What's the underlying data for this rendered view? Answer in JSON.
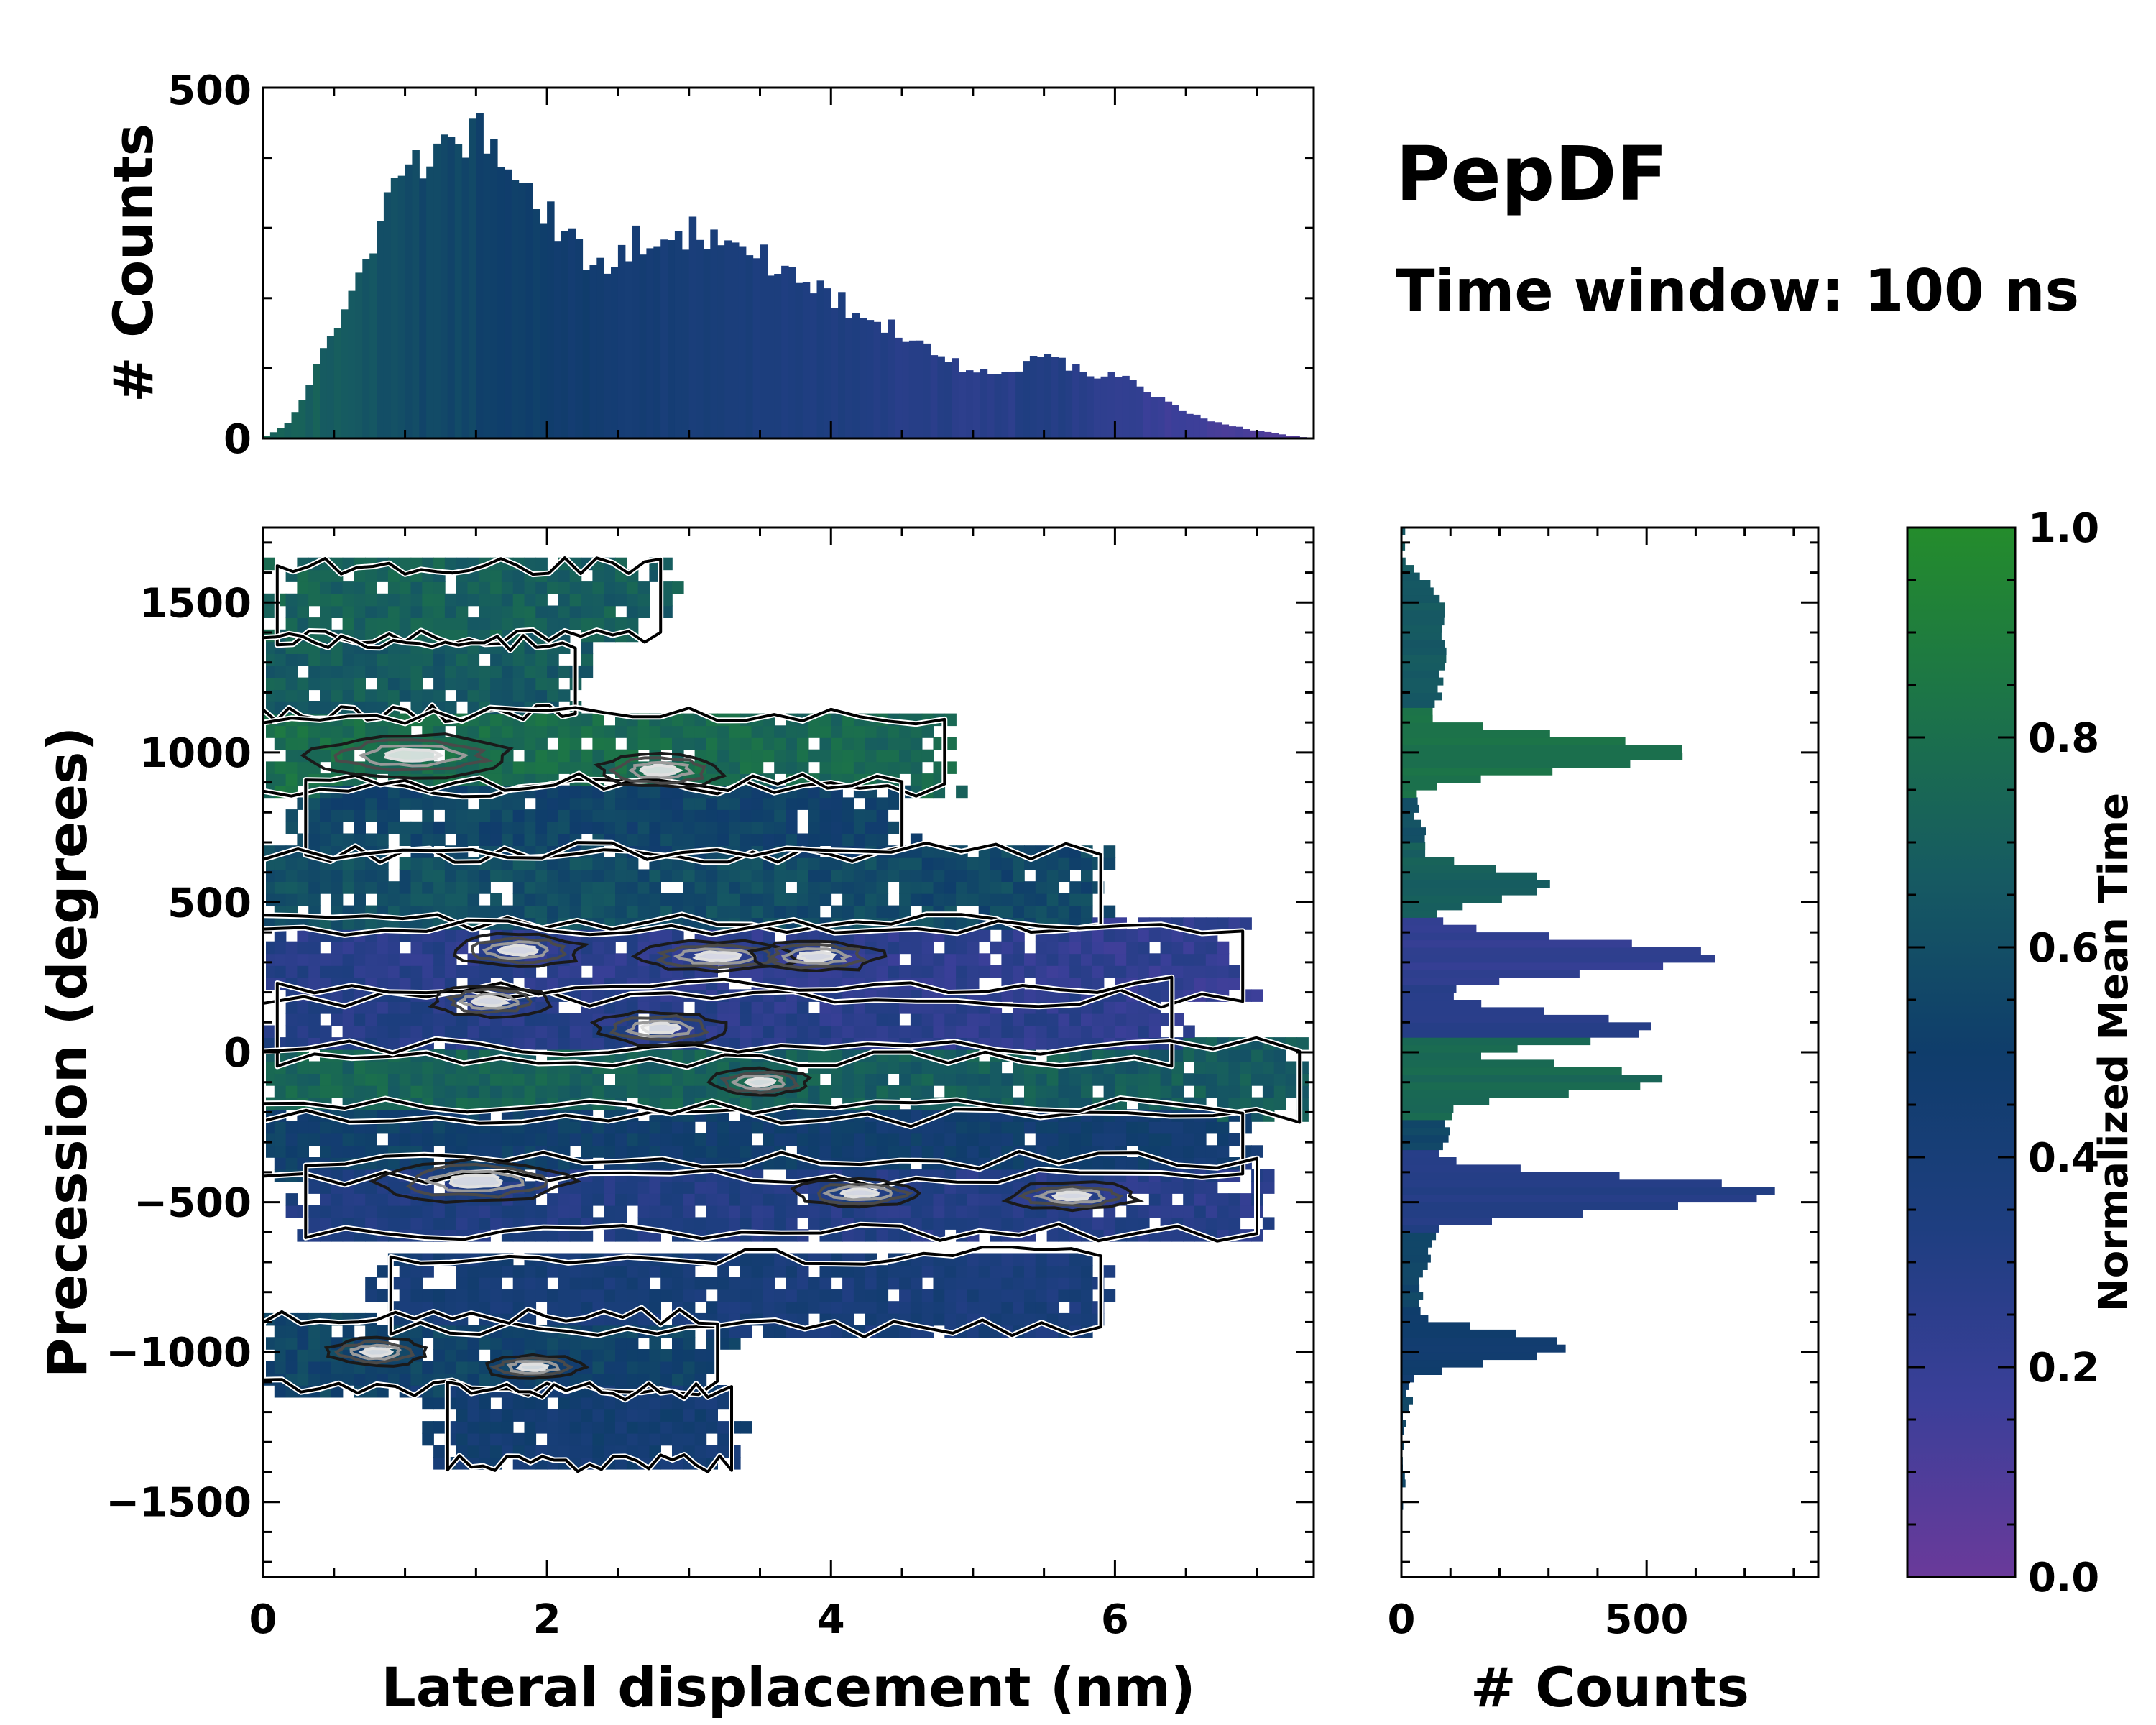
{
  "title": "PepDF",
  "subtitle": "Time window: 100 ns",
  "colors": {
    "colormap": [
      "#6a3a9a",
      "#3b3f99",
      "#1e3e80",
      "#0f3d6b",
      "#165a62",
      "#1c7448",
      "#248c2c"
    ],
    "contour_outer": "#000000",
    "contour_inner_gray": "#5a5a5a",
    "contour_peak_light": "#d8d8d8",
    "frame": "#000000",
    "background": "#ffffff"
  },
  "chart_data": [
    {
      "id": "main",
      "type": "heatmap",
      "xlabel": "Lateral displacement (nm)",
      "ylabel": "Precession (degrees)",
      "xlim": [
        0,
        7.4
      ],
      "ylim": [
        -1750,
        1750
      ],
      "xticks": [
        "0",
        "2",
        "4",
        "6"
      ],
      "xtick_values": [
        0,
        2,
        4,
        6
      ],
      "yticks": [
        "1500",
        "1000",
        "500",
        "0",
        "−500",
        "−1000",
        "−1500"
      ],
      "ytick_values": [
        1500,
        1000,
        500,
        0,
        -500,
        -1000,
        -1500
      ],
      "bands": [
        {
          "y": 1500,
          "x0": 0.1,
          "x1": 2.8,
          "t": 0.72
        },
        {
          "y": 1250,
          "x0": 0.0,
          "x1": 2.2,
          "t": 0.68
        },
        {
          "y": 1000,
          "x0": 0.0,
          "x1": 4.8,
          "t": 0.8
        },
        {
          "y": 780,
          "x0": 0.3,
          "x1": 4.5,
          "t": 0.56
        },
        {
          "y": 550,
          "x0": 0.0,
          "x1": 5.9,
          "t": 0.62
        },
        {
          "y": 300,
          "x0": 0.0,
          "x1": 6.9,
          "t": 0.28
        },
        {
          "y": 100,
          "x0": 0.1,
          "x1": 6.4,
          "t": 0.3
        },
        {
          "y": -100,
          "x0": 0.0,
          "x1": 7.3,
          "t": 0.74
        },
        {
          "y": -300,
          "x0": 0.0,
          "x1": 6.9,
          "t": 0.52
        },
        {
          "y": -480,
          "x0": 0.3,
          "x1": 7.0,
          "t": 0.34
        },
        {
          "y": -800,
          "x0": 0.9,
          "x1": 5.9,
          "t": 0.42
        },
        {
          "y": -1000,
          "x0": 0.0,
          "x1": 3.2,
          "t": 0.55
        },
        {
          "y": -1250,
          "x0": 1.3,
          "x1": 3.3,
          "t": 0.45
        }
      ],
      "peaks": [
        {
          "x": 1.05,
          "y": 990,
          "w": 0.7,
          "h": 70
        },
        {
          "x": 2.8,
          "y": 940,
          "w": 0.45,
          "h": 55
        },
        {
          "x": 1.8,
          "y": 340,
          "w": 0.45,
          "h": 55
        },
        {
          "x": 3.2,
          "y": 320,
          "w": 0.55,
          "h": 50
        },
        {
          "x": 3.9,
          "y": 320,
          "w": 0.45,
          "h": 50
        },
        {
          "x": 2.8,
          "y": 80,
          "w": 0.45,
          "h": 55
        },
        {
          "x": 1.6,
          "y": 170,
          "w": 0.4,
          "h": 50
        },
        {
          "x": 3.5,
          "y": -100,
          "w": 0.35,
          "h": 45
        },
        {
          "x": 1.5,
          "y": -430,
          "w": 0.65,
          "h": 70
        },
        {
          "x": 4.2,
          "y": -470,
          "w": 0.45,
          "h": 45
        },
        {
          "x": 5.7,
          "y": -480,
          "w": 0.45,
          "h": 45
        },
        {
          "x": 0.8,
          "y": -1000,
          "w": 0.35,
          "h": 45
        },
        {
          "x": 1.9,
          "y": -1050,
          "w": 0.35,
          "h": 40
        }
      ]
    },
    {
      "id": "top_histogram",
      "type": "bar",
      "ylabel": "# Counts",
      "xlim": [
        0,
        7.4
      ],
      "ylim": [
        0,
        500
      ],
      "yticks": [
        "500",
        "0"
      ],
      "ytick_values": [
        500,
        0
      ],
      "bin_width_nm": 0.05,
      "profile_x": [
        0,
        0.2,
        0.5,
        0.8,
        1.1,
        1.4,
        1.6,
        1.8,
        2.0,
        2.2,
        2.4,
        2.7,
        2.9,
        3.2,
        3.5,
        3.8,
        4.1,
        4.4,
        4.8,
        5.2,
        5.5,
        5.8,
        6.1,
        6.3,
        6.6,
        6.9,
        7.2,
        7.4
      ],
      "profile_y": [
        0,
        25,
        150,
        300,
        400,
        420,
        440,
        390,
        320,
        270,
        250,
        290,
        300,
        280,
        260,
        220,
        190,
        160,
        110,
        90,
        120,
        95,
        90,
        60,
        30,
        15,
        5,
        0
      ],
      "profile_t": [
        0.75,
        0.72,
        0.68,
        0.62,
        0.57,
        0.55,
        0.52,
        0.5,
        0.5,
        0.47,
        0.45,
        0.42,
        0.4,
        0.38,
        0.36,
        0.33,
        0.32,
        0.3,
        0.28,
        0.26,
        0.32,
        0.27,
        0.22,
        0.18,
        0.15,
        0.12,
        0.1,
        0.1
      ]
    },
    {
      "id": "right_histogram",
      "type": "bar",
      "xlabel": "# Counts",
      "xlim": [
        0,
        850
      ],
      "ylim": [
        -1750,
        1750
      ],
      "xticks": [
        "0",
        "500"
      ],
      "xtick_values": [
        0,
        500
      ],
      "bin_width_deg": 25,
      "baseline": [
        {
          "y": 1650,
          "c": 10
        },
        {
          "y": 1500,
          "c": 80
        },
        {
          "y": 1300,
          "c": 90
        },
        {
          "y": 1100,
          "c": 60
        },
        {
          "y": 800,
          "c": 30
        },
        {
          "y": 650,
          "c": 60
        },
        {
          "y": 400,
          "c": 80
        },
        {
          "y": 150,
          "c": 120
        },
        {
          "y": -150,
          "c": 110
        },
        {
          "y": -350,
          "c": 80
        },
        {
          "y": -650,
          "c": 60
        },
        {
          "y": -800,
          "c": 40
        },
        {
          "y": -1050,
          "c": 30
        },
        {
          "y": -1200,
          "c": 10
        },
        {
          "y": -1350,
          "c": 0
        }
      ],
      "peaks": [
        {
          "y": 1000,
          "c": 580,
          "w": 55,
          "t": 0.82
        },
        {
          "y": 560,
          "c": 310,
          "w": 55,
          "t": 0.7
        },
        {
          "y": 320,
          "c": 640,
          "w": 55,
          "t": 0.22
        },
        {
          "y": 80,
          "c": 510,
          "w": 55,
          "t": 0.28
        },
        {
          "y": -90,
          "c": 530,
          "w": 50,
          "t": 0.76
        },
        {
          "y": -470,
          "c": 770,
          "w": 55,
          "t": 0.3
        },
        {
          "y": -980,
          "c": 330,
          "w": 50,
          "t": 0.48
        }
      ]
    },
    {
      "id": "colorbar",
      "type": "colorbar",
      "label": "Normalized Mean Time",
      "range": [
        0,
        1
      ],
      "ticks": [
        "1.0",
        "0.8",
        "0.6",
        "0.4",
        "0.2",
        "0.0"
      ],
      "tick_values": [
        1.0,
        0.8,
        0.6,
        0.4,
        0.2,
        0.0
      ]
    }
  ]
}
